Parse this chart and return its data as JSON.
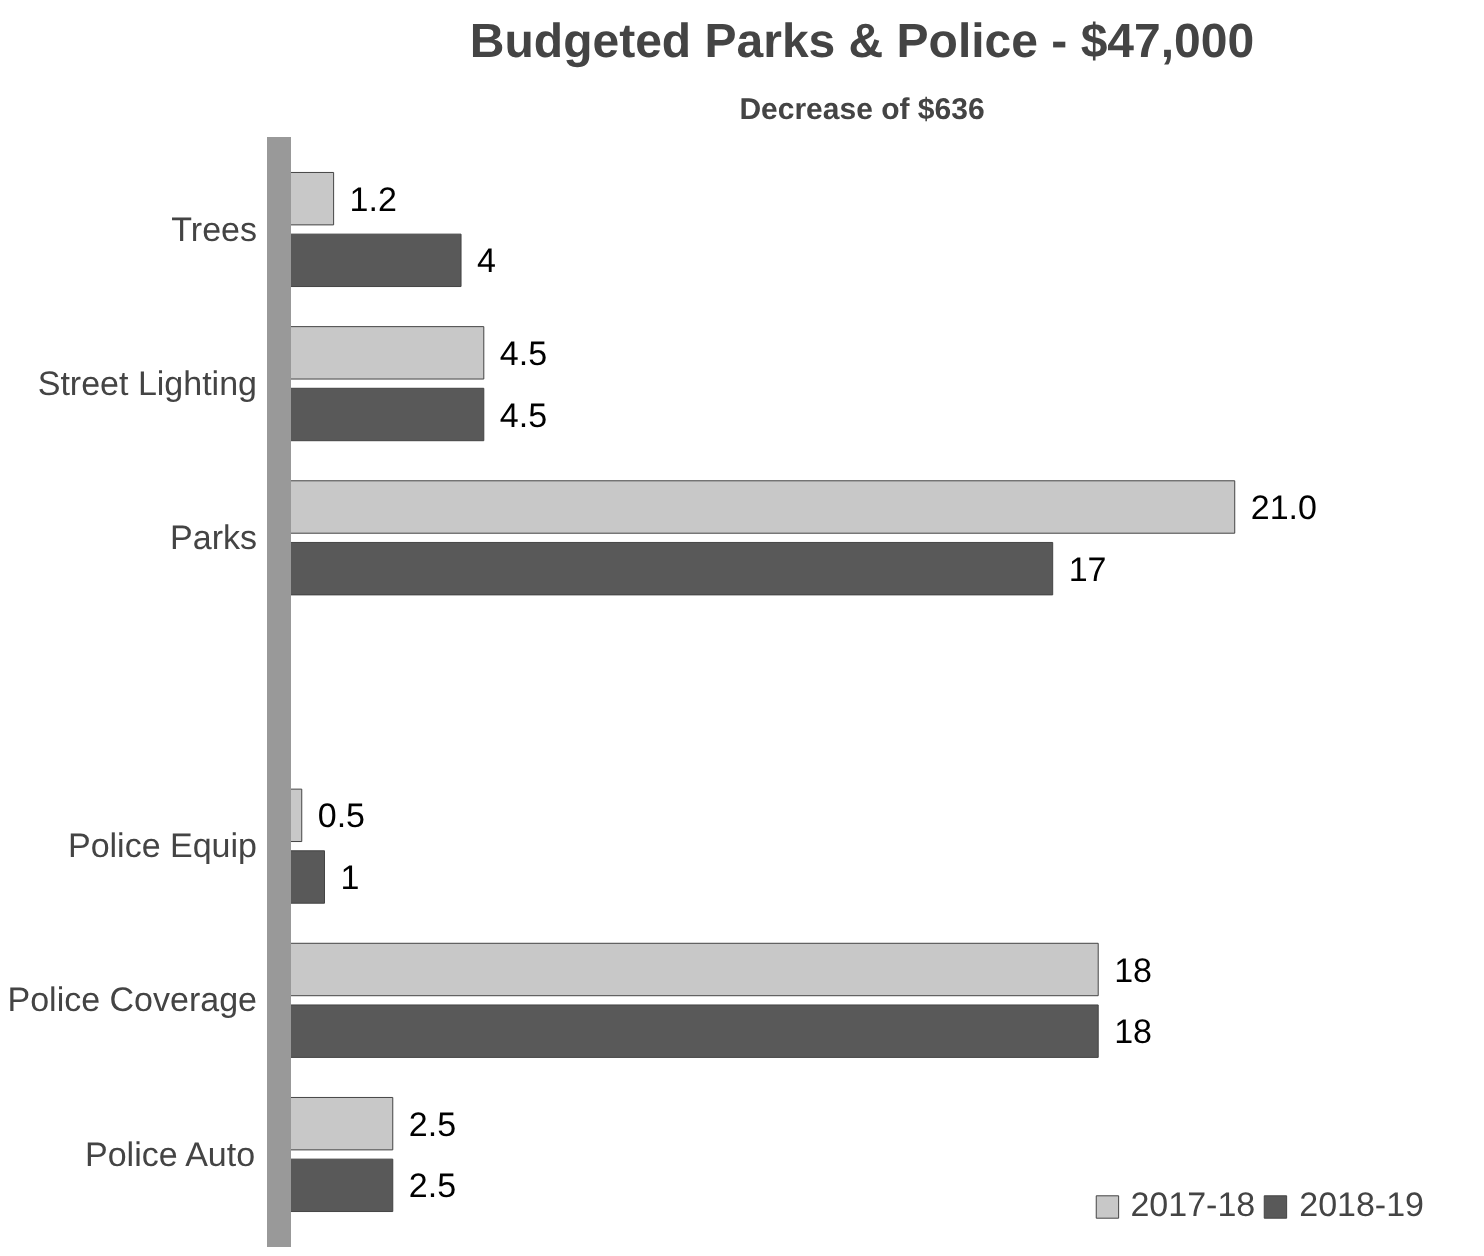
{
  "chart_data": {
    "type": "bar",
    "orientation": "horizontal",
    "title": "Budgeted Parks & Police - $47,000",
    "subtitle": "Decrease of $636",
    "categories": [
      "Trees",
      "Street Lighting",
      "Parks",
      null,
      "Police Equip",
      "Police Coverage",
      "Police Auto"
    ],
    "series": [
      {
        "name": "2017-18",
        "color": "#c8c8c8",
        "values": [
          1.2,
          4.5,
          21.0,
          null,
          0.5,
          18,
          2.5
        ],
        "value_labels": [
          "1.2",
          "4.5",
          "21.0",
          null,
          "0.5",
          "18",
          "2.5"
        ]
      },
      {
        "name": "2018-19",
        "color": "#595959",
        "values": [
          4,
          4.5,
          17,
          null,
          1,
          18,
          2.5
        ],
        "value_labels": [
          "4",
          "4.5",
          "17",
          null,
          "1",
          "18",
          "2.5"
        ]
      }
    ],
    "grid": false,
    "legend": "bottom right"
  }
}
